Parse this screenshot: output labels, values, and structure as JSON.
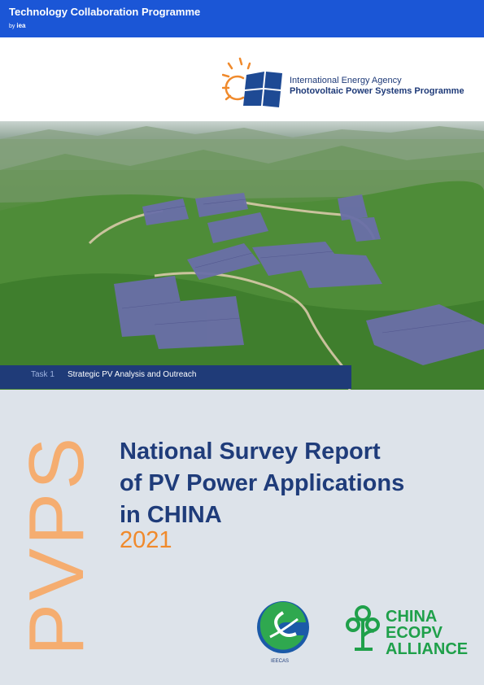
{
  "header": {
    "programme": "Technology Collaboration Programme",
    "by_prefix": "by",
    "by_brand": "iea"
  },
  "iea_block": {
    "agency": "International Energy Agency",
    "programme": "Photovoltaic Power Systems Programme"
  },
  "task": {
    "label": "Task 1",
    "title": "Strategic PV Analysis and Outreach"
  },
  "side_word": "PVPS",
  "report": {
    "title_lines": [
      "National Survey Report",
      "of PV Power Applications",
      "in CHINA"
    ],
    "year": "2021"
  },
  "partners": {
    "ieecas_caption": "IEECAS",
    "ecopv_lines": [
      "CHINA",
      "ECOPV",
      "ALLIANCE"
    ]
  },
  "colors": {
    "top_bar": "#1b56d6",
    "navy": "#1f3c7a",
    "accent_orange": "#f08a2c",
    "background": "#dde3ea",
    "green": "#1fa04a"
  },
  "icons": [
    "sun-panel-logo-icon",
    "ieecas-logo-icon",
    "ecopv-tree-logo-icon"
  ]
}
